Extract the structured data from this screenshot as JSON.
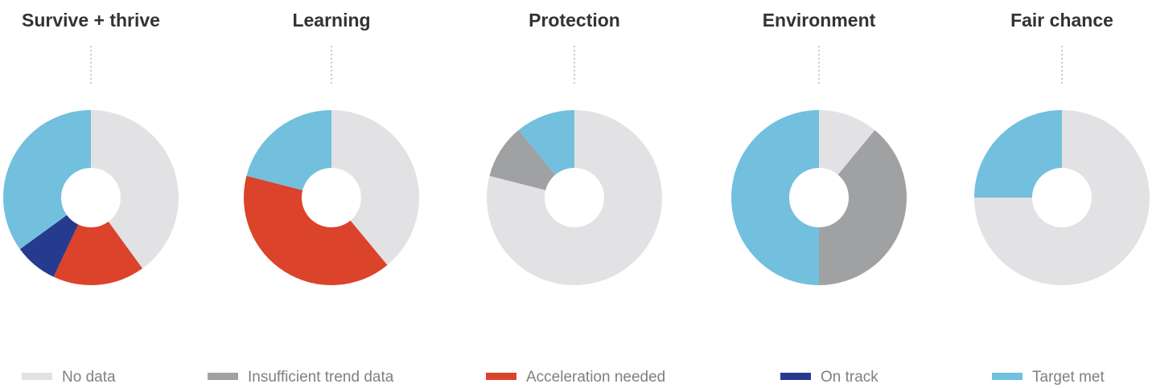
{
  "chart_data": {
    "type": "pie",
    "variant": "donut",
    "legend": {
      "position": "bottom",
      "entries": [
        {
          "key": "no_data",
          "label": "No data",
          "color": "#e2e2e4"
        },
        {
          "key": "insufficient",
          "label": "Insufficient trend data",
          "color": "#a0a1a3"
        },
        {
          "key": "acceleration",
          "label": "Acceleration needed",
          "color": "#db432a"
        },
        {
          "key": "on_track",
          "label": "On track",
          "color": "#263b8e"
        },
        {
          "key": "target_met",
          "label": "Target met",
          "color": "#72c0de"
        }
      ]
    },
    "charts": [
      {
        "title": "Survive + thrive",
        "slices": [
          {
            "key": "no_data",
            "value": 40
          },
          {
            "key": "insufficient",
            "value": 0
          },
          {
            "key": "acceleration",
            "value": 17
          },
          {
            "key": "on_track",
            "value": 8
          },
          {
            "key": "target_met",
            "value": 35
          }
        ]
      },
      {
        "title": "Learning",
        "slices": [
          {
            "key": "no_data",
            "value": 39
          },
          {
            "key": "insufficient",
            "value": 0
          },
          {
            "key": "acceleration",
            "value": 40
          },
          {
            "key": "on_track",
            "value": 0
          },
          {
            "key": "target_met",
            "value": 21
          }
        ]
      },
      {
        "title": "Protection",
        "slices": [
          {
            "key": "no_data",
            "value": 79
          },
          {
            "key": "insufficient",
            "value": 10
          },
          {
            "key": "acceleration",
            "value": 0
          },
          {
            "key": "on_track",
            "value": 0
          },
          {
            "key": "target_met",
            "value": 11
          }
        ]
      },
      {
        "title": "Environment",
        "slices": [
          {
            "key": "no_data",
            "value": 11
          },
          {
            "key": "insufficient",
            "value": 39
          },
          {
            "key": "acceleration",
            "value": 0
          },
          {
            "key": "on_track",
            "value": 0
          },
          {
            "key": "target_met",
            "value": 50
          }
        ]
      },
      {
        "title": "Fair chance",
        "slices": [
          {
            "key": "no_data",
            "value": 75
          },
          {
            "key": "insufficient",
            "value": 0
          },
          {
            "key": "acceleration",
            "value": 0
          },
          {
            "key": "on_track",
            "value": 0
          },
          {
            "key": "target_met",
            "value": 25
          }
        ]
      }
    ]
  }
}
